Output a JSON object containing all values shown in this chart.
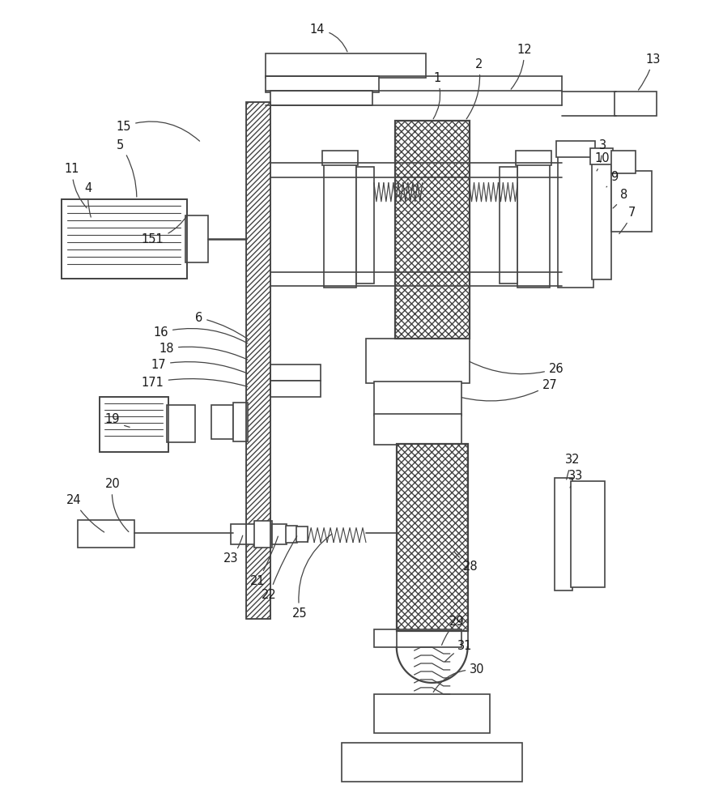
{
  "bg_color": "#ffffff",
  "line_color": "#444444",
  "label_color": "#1a1a1a",
  "lw": 1.2,
  "label_fontsize": 10.5
}
